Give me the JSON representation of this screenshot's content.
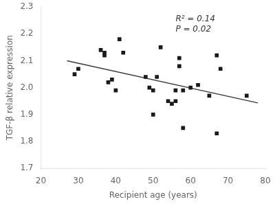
{
  "chart_data": {
    "type": "scatter",
    "xlabel": "Recipient age (years)",
    "ylabel": "TGF-β relative expression",
    "annotations": [
      "R² = 0.14",
      "P = 0.02"
    ],
    "series": [
      {
        "type": "scatter",
        "color": "#1a1a1a",
        "marker": "square",
        "x": [
          29,
          30,
          36,
          37,
          37,
          38,
          39,
          40,
          41,
          42,
          48,
          49,
          50,
          50,
          51,
          52,
          54,
          55,
          56,
          56,
          57,
          57,
          58,
          58,
          60,
          62,
          65,
          67,
          67,
          68,
          75
        ],
        "values": [
          2.05,
          2.07,
          2.14,
          2.13,
          2.12,
          2.02,
          2.03,
          1.99,
          2.18,
          2.13,
          2.04,
          2.0,
          1.99,
          1.9,
          2.04,
          2.15,
          1.95,
          1.94,
          1.95,
          1.99,
          2.11,
          2.08,
          1.99,
          1.85,
          2.0,
          2.01,
          1.97,
          2.12,
          1.83,
          2.07,
          1.97
        ]
      },
      {
        "type": "line",
        "color": "#3a3a3a",
        "line_style": "solid",
        "x": [
          27,
          78
        ],
        "values": [
          2.1003,
          1.9434
        ]
      }
    ],
    "xlim": [
      20,
      80
    ],
    "ylim": [
      1.7,
      2.3
    ],
    "xticks": [
      20,
      30,
      40,
      50,
      60,
      70,
      80
    ],
    "yticks": [
      1.7,
      1.8,
      1.9,
      {
        "value": 2.0,
        "label": "2.0"
      },
      2.1,
      2.2,
      2.3
    ],
    "grid": false
  }
}
